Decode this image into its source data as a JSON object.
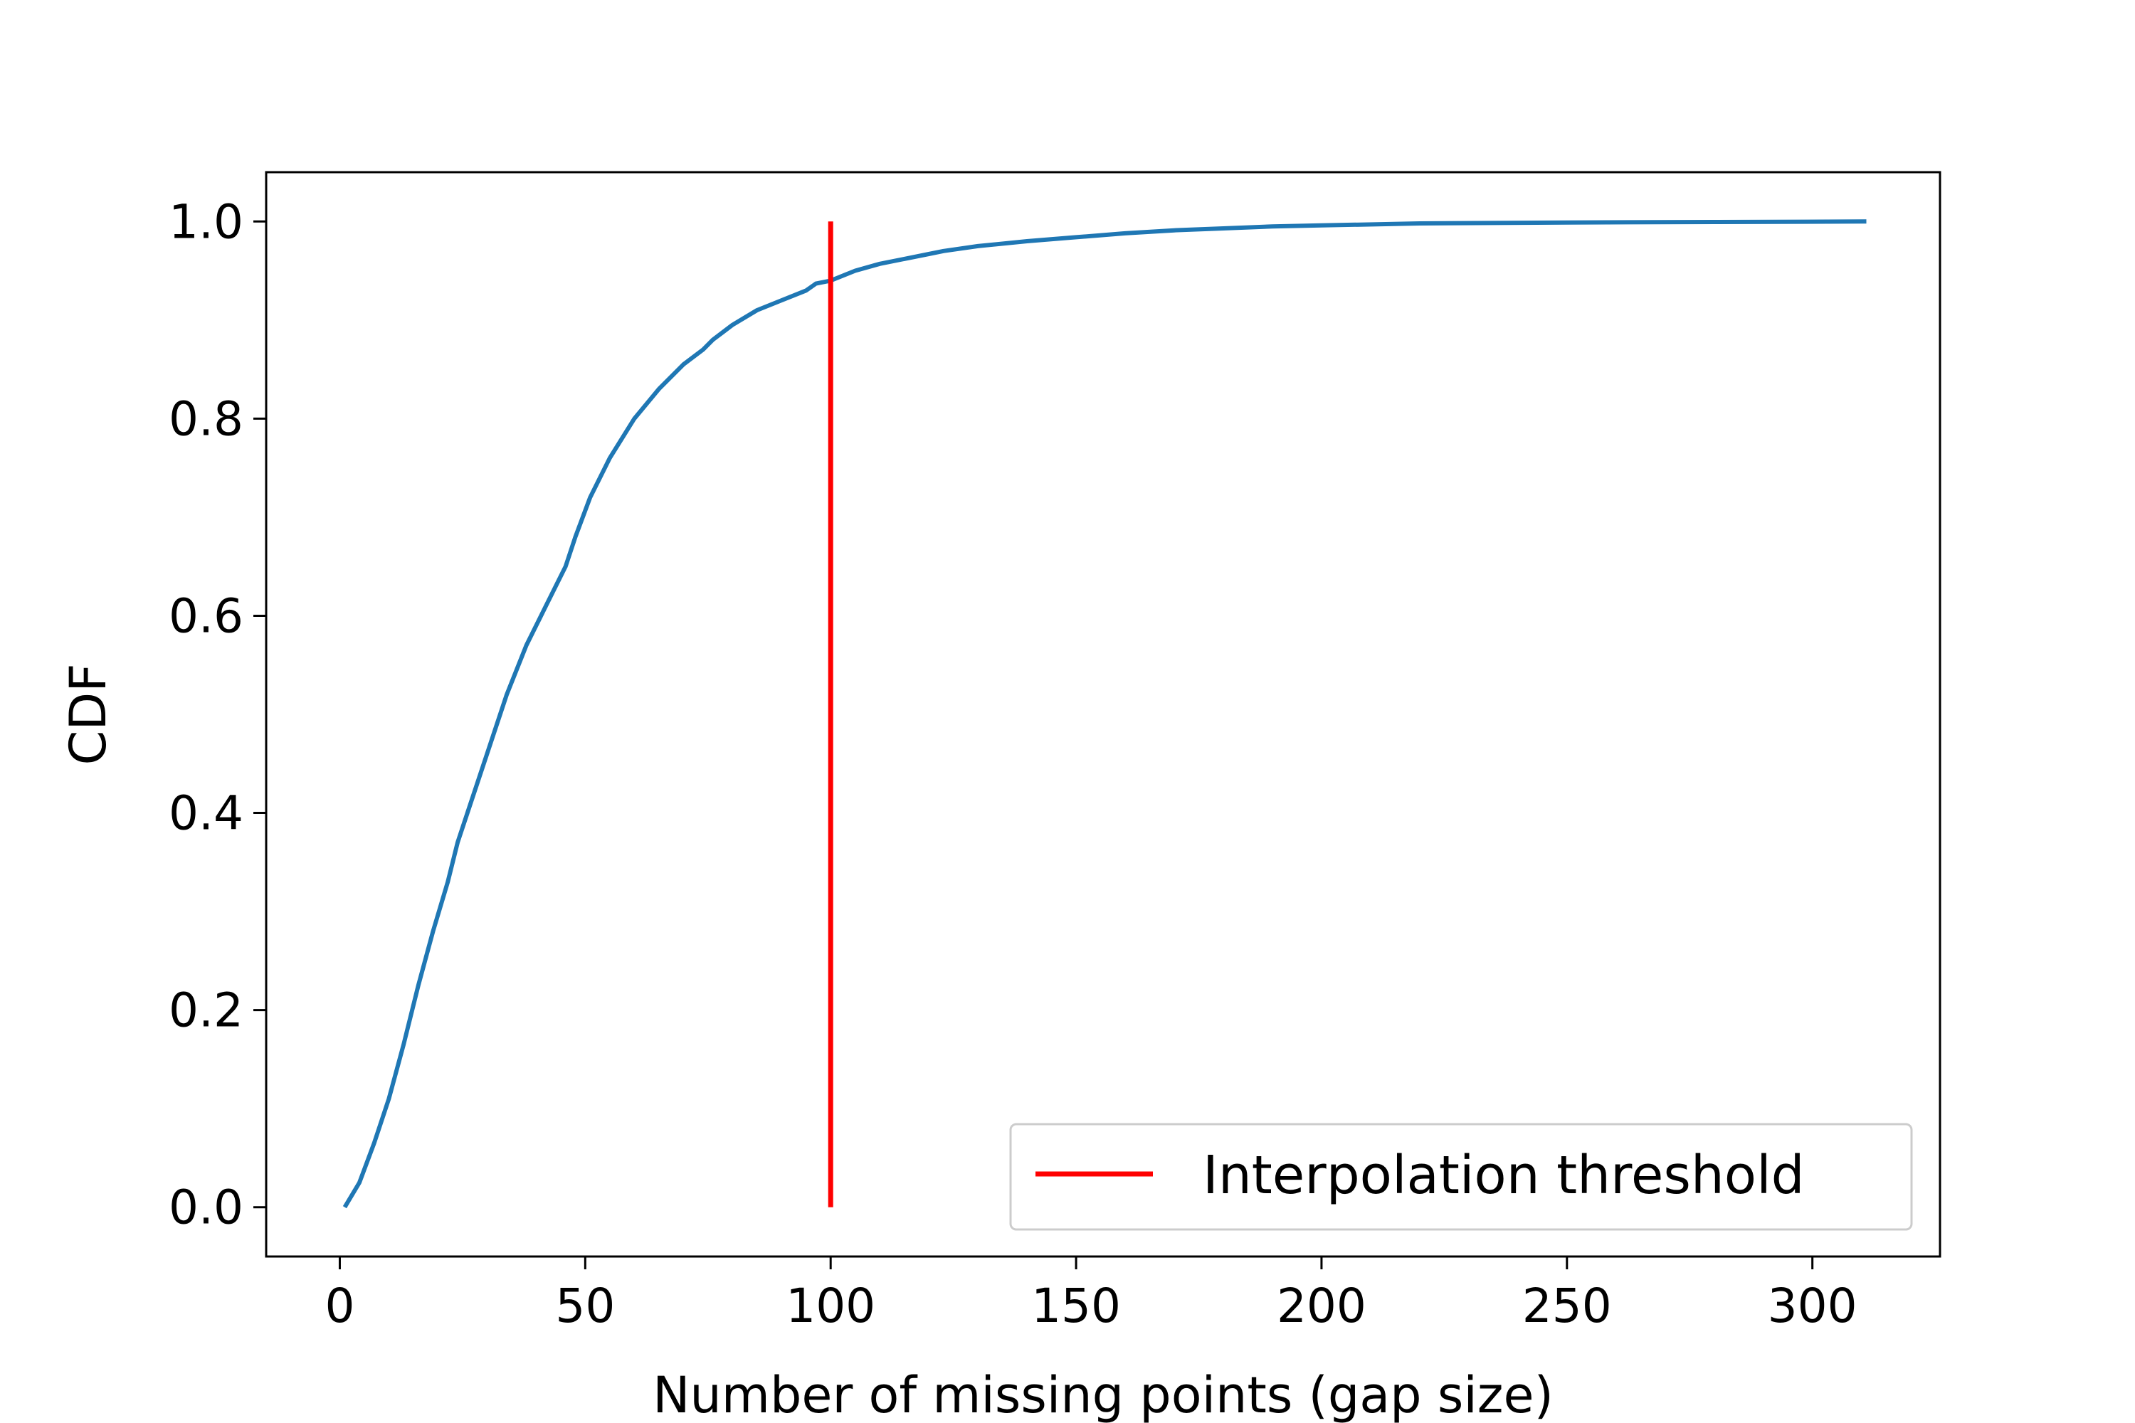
{
  "chart_data": {
    "type": "line",
    "title": "",
    "xlabel": "Number of missing points (gap size)",
    "ylabel": "CDF",
    "xlim": [
      -15,
      326
    ],
    "ylim": [
      -0.05,
      1.05
    ],
    "x_ticks": [
      0,
      50,
      100,
      150,
      200,
      250,
      300
    ],
    "x_tick_labels": [
      "0",
      "50",
      "100",
      "150",
      "200",
      "250",
      "300"
    ],
    "y_ticks": [
      0.0,
      0.2,
      0.4,
      0.6,
      0.8,
      1.0
    ],
    "y_tick_labels": [
      "0.0",
      "0.2",
      "0.4",
      "0.6",
      "0.8",
      "1.0"
    ],
    "grid": false,
    "legend_position": "lower-right",
    "series": [
      {
        "color": "#1f77b4",
        "x": [
          1,
          4,
          7,
          10,
          13,
          16,
          19,
          22,
          24,
          26,
          30,
          34,
          38,
          42,
          46,
          48,
          51,
          55,
          60,
          65,
          70,
          74,
          76,
          80,
          85,
          90,
          95,
          97,
          100,
          105,
          110,
          115,
          120,
          123,
          130,
          140,
          150,
          160,
          170,
          180,
          190,
          200,
          220,
          250,
          280,
          311
        ],
        "y": [
          0.0,
          0.025,
          0.065,
          0.11,
          0.165,
          0.225,
          0.28,
          0.33,
          0.37,
          0.4,
          0.46,
          0.52,
          0.57,
          0.61,
          0.65,
          0.68,
          0.72,
          0.76,
          0.8,
          0.83,
          0.855,
          0.87,
          0.88,
          0.895,
          0.91,
          0.92,
          0.93,
          0.937,
          0.94,
          0.95,
          0.957,
          0.962,
          0.967,
          0.97,
          0.975,
          0.98,
          0.984,
          0.988,
          0.991,
          0.993,
          0.995,
          0.996,
          0.998,
          0.999,
          0.9995,
          1.0
        ]
      }
    ],
    "vlines": [
      {
        "name": "Interpolation threshold",
        "color": "#ff0000",
        "x": 100,
        "ymin": 0.0,
        "ymax": 1.0
      }
    ],
    "legend": [
      "Interpolation threshold"
    ]
  }
}
